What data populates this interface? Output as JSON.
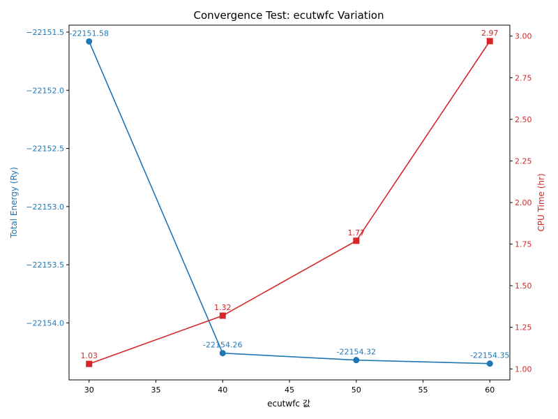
{
  "chart_data": {
    "type": "line",
    "title": "Convergence Test: ecutwfc Variation",
    "xlabel": "ecutwfc 값",
    "x": [
      30,
      40,
      50,
      60
    ],
    "xlim": [
      28.5,
      61.5
    ],
    "xticks": [
      30,
      35,
      40,
      45,
      50,
      55,
      60
    ],
    "grid": false,
    "series": [
      {
        "axis": "left",
        "ylabel": "Total Energy (Ry)",
        "color": "#1f77b4",
        "marker": "circle",
        "values": [
          -22151.58,
          -22154.26,
          -22154.32,
          -22154.35
        ],
        "labels": [
          "-22151.58",
          "-22154.26",
          "-22154.32",
          "-22154.35"
        ],
        "ylim": [
          -22154.49,
          -22151.44
        ],
        "yticks": [
          "-22151.5",
          "-22152.0",
          "-22152.5",
          "-22153.0",
          "-22153.5",
          "-22154.0"
        ]
      },
      {
        "axis": "right",
        "ylabel": "CPU Time (hr)",
        "color": "#d62728",
        "marker": "square",
        "values": [
          1.03,
          1.32,
          1.77,
          2.97
        ],
        "labels": [
          "1.03",
          "1.32",
          "1.77",
          "2.97"
        ],
        "ylim": [
          0.934,
          3.066
        ],
        "yticks": [
          "1.00",
          "1.25",
          "1.50",
          "1.75",
          "2.00",
          "2.25",
          "2.50",
          "2.75",
          "3.00"
        ]
      }
    ]
  }
}
